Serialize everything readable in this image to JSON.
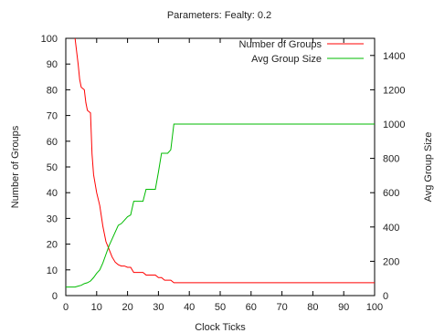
{
  "chart_data": {
    "type": "line",
    "title": "Parameters: Fealty: 0.2",
    "xlabel": "Clock Ticks",
    "ylabel": "Number of Groups",
    "y2label": "Avg Group Size",
    "xlim": [
      0,
      100
    ],
    "ylim": [
      0,
      100
    ],
    "y2lim": [
      0,
      1500
    ],
    "xticks": [
      0,
      10,
      20,
      30,
      40,
      50,
      60,
      70,
      80,
      90,
      100
    ],
    "yticks": [
      0,
      10,
      20,
      30,
      40,
      50,
      60,
      70,
      80,
      90,
      100
    ],
    "y2ticks": [
      0,
      200,
      400,
      600,
      800,
      1000,
      1200,
      1400
    ],
    "grid": false,
    "legend_position": "top-right",
    "series": [
      {
        "name": "Number of Groups",
        "color": "#ff0000",
        "axis": "left",
        "x": [
          3,
          4,
          4.5,
          5,
          6,
          6.5,
          7,
          8,
          8.5,
          9,
          10,
          11,
          12,
          13,
          14,
          15,
          16,
          17,
          18,
          19,
          20,
          21,
          22,
          23,
          24,
          25,
          26,
          27,
          28,
          29,
          30,
          31,
          32,
          33,
          34,
          35,
          36,
          40,
          50,
          60,
          70,
          80,
          90,
          100
        ],
        "y": [
          100,
          90,
          84,
          81,
          80,
          75,
          72,
          71,
          55,
          47,
          40,
          35,
          27,
          21,
          18,
          15,
          13,
          12,
          11.5,
          11.5,
          11,
          11,
          9,
          9,
          9,
          9,
          8,
          8,
          8,
          8,
          7,
          7,
          6,
          6,
          6,
          5,
          5,
          5,
          5,
          5,
          5,
          5,
          5,
          5
        ]
      },
      {
        "name": "Avg Group Size",
        "color": "#00bb00",
        "axis": "right",
        "x": [
          0,
          3,
          4,
          5,
          6,
          7,
          8,
          9,
          10,
          11,
          12,
          13,
          14,
          15,
          16,
          17,
          18,
          19,
          20,
          21,
          22,
          25,
          26,
          29,
          30,
          31,
          33,
          34,
          35,
          100
        ],
        "y": [
          50,
          50,
          55,
          60,
          70,
          75,
          85,
          105,
          130,
          150,
          190,
          240,
          290,
          330,
          370,
          410,
          420,
          440,
          460,
          470,
          550,
          550,
          620,
          620,
          720,
          830,
          830,
          850,
          1000,
          1000
        ]
      }
    ]
  }
}
